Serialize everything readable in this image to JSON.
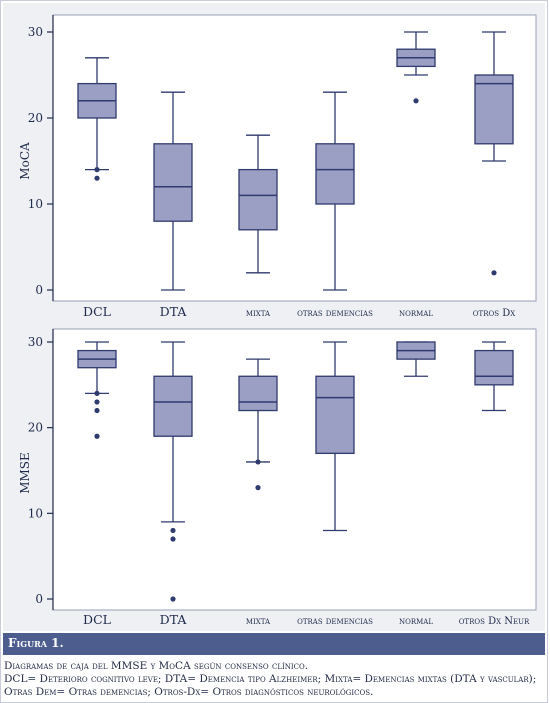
{
  "figure": {
    "label": "Figura 1.",
    "caption_line1": "Diagramas de caja del MMSE y MoCA según consenso clínico.",
    "caption_line2": "DCL= Deterioro cognitivo leve; DTA= Demencia tipo Alzheimer; Mixta= Demencias mixtas (DTA y vascular); Otras Dem= Otras demencias; Otros-Dx= Otros diagnósticos neurológicos."
  },
  "colors": {
    "box_fill": "#9b9fc4",
    "box_stroke": "#2f3a6e",
    "panel_bg": "#eef0f4",
    "caption_bar": "#4d5d8e",
    "outlier": "#2f3a6e"
  },
  "chart_data": [
    {
      "type": "box",
      "ylabel": "MoCA",
      "ylim": [
        0,
        30
      ],
      "yticks": [
        0,
        10,
        20,
        30
      ],
      "grid": false,
      "categories": [
        "DCL",
        "DTA",
        "mixta",
        "otras demencias",
        "normal",
        "otros Dx"
      ],
      "boxes": [
        {
          "min": 14,
          "q1": 20,
          "median": 22,
          "q3": 24,
          "max": 27,
          "outliers": [
            14,
            13
          ]
        },
        {
          "min": 0,
          "q1": 8,
          "median": 12,
          "q3": 17,
          "max": 23,
          "outliers": []
        },
        {
          "min": 2,
          "q1": 7,
          "median": 11,
          "q3": 14,
          "max": 18,
          "outliers": []
        },
        {
          "min": 0,
          "q1": 10,
          "median": 14,
          "q3": 17,
          "max": 23,
          "outliers": []
        },
        {
          "min": 25,
          "q1": 26,
          "median": 27,
          "q3": 28,
          "max": 30,
          "outliers": [
            22
          ]
        },
        {
          "min": 15,
          "q1": 17,
          "median": 24,
          "q3": 25,
          "max": 30,
          "outliers": [
            2
          ]
        }
      ]
    },
    {
      "type": "box",
      "ylabel": "MMSE",
      "ylim": [
        0,
        30
      ],
      "yticks": [
        0,
        10,
        20,
        30
      ],
      "grid": false,
      "categories": [
        "DCL",
        "DTA",
        "mixta",
        "otras demencias",
        "normal",
        "otros Dx Neur"
      ],
      "boxes": [
        {
          "min": 24,
          "q1": 27,
          "median": 28,
          "q3": 29,
          "max": 30,
          "outliers": [
            24,
            23,
            22,
            19
          ]
        },
        {
          "min": 9,
          "q1": 19,
          "median": 23,
          "q3": 26,
          "max": 30,
          "outliers": [
            8,
            7,
            0
          ]
        },
        {
          "min": 16,
          "q1": 22,
          "median": 23,
          "q3": 26,
          "max": 28,
          "outliers": [
            16,
            13
          ]
        },
        {
          "min": 8,
          "q1": 17,
          "median": 23.5,
          "q3": 26,
          "max": 30,
          "outliers": []
        },
        {
          "min": 26,
          "q1": 28,
          "median": 29,
          "q3": 30,
          "max": 30,
          "outliers": []
        },
        {
          "min": 22,
          "q1": 25,
          "median": 26,
          "q3": 29,
          "max": 30,
          "outliers": []
        }
      ]
    }
  ]
}
